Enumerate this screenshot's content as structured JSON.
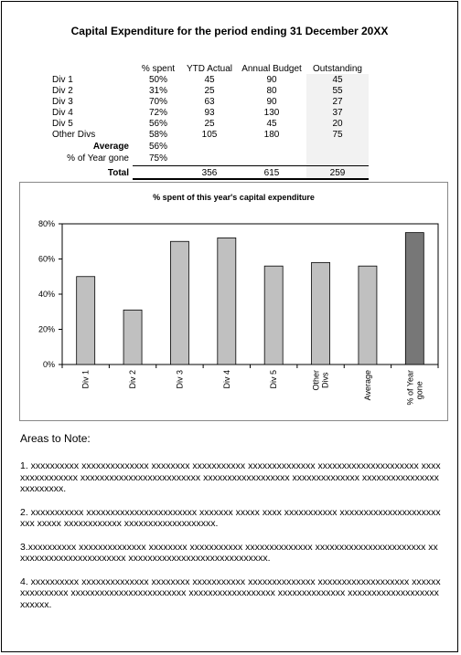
{
  "title": "Capital Expenditure for the period ending 31 December 20XX",
  "table": {
    "headers": {
      "spent": "% spent",
      "ytd": "YTD Actual",
      "budget": "Annual Budget",
      "outstanding": "Outstanding"
    },
    "rows": [
      {
        "label": "Div 1",
        "spent": "50%",
        "ytd": "45",
        "budget": "90",
        "outstanding": "45"
      },
      {
        "label": "Div 2",
        "spent": "31%",
        "ytd": "25",
        "budget": "80",
        "outstanding": "55"
      },
      {
        "label": "Div 3",
        "spent": "70%",
        "ytd": "63",
        "budget": "90",
        "outstanding": "27"
      },
      {
        "label": "Div 4",
        "spent": "72%",
        "ytd": "93",
        "budget": "130",
        "outstanding": "37"
      },
      {
        "label": "Div 5",
        "spent": "56%",
        "ytd": "25",
        "budget": "45",
        "outstanding": "20"
      },
      {
        "label": "Other Divs",
        "spent": "58%",
        "ytd": "105",
        "budget": "180",
        "outstanding": "75"
      }
    ],
    "average": {
      "label": "Average",
      "spent": "56%"
    },
    "year_gone": {
      "label": "% of Year gone",
      "spent": "75%"
    },
    "total": {
      "label": "Total",
      "ytd": "356",
      "budget": "615",
      "outstanding": "259"
    }
  },
  "chart_data": {
    "type": "bar",
    "title": "% spent of this year's capital expenditure",
    "categories": [
      "Div 1",
      "Div 2",
      "Div 3",
      "Div 4",
      "Div 5",
      "Other Divs",
      "Average",
      "% of Year gone"
    ],
    "values": [
      50,
      31,
      70,
      72,
      56,
      58,
      56,
      75
    ],
    "ylim": [
      0,
      80
    ],
    "yticks": [
      "0%",
      "20%",
      "40%",
      "60%",
      "80%"
    ],
    "ytick_values": [
      0,
      20,
      40,
      60,
      80
    ],
    "grid": false,
    "legend": "none",
    "bar_color": "#c0c0c0",
    "highlight_bar_color": "#777777"
  },
  "notes": {
    "heading": "Areas to Note:",
    "items": [
      "1.  xxxxxxxxxx xxxxxxxxxxxxxx xxxxxxxx xxxxxxxxxxx xxxxxxxxxxxxxx xxxxxxxxxxxxxxxxxxxxx xxxxxxxxxxxxxxxx xxxxxxxxxxxxxxxxxxxxxxxxx xxxxxxxxxxxxxxxxxx xxxxxxxxxxxxxx xxxxxxxxxxxxxxxxxxxxxxxxx.",
      "2. xxxxxxxxxxx xxxxxxxxxxxxxxxxxxxxxxx xxxxxxx xxxxx xxxx xxxxxxxxxxx xxxxxxxxxxxxxxxxxxxxxxxx xxxxx xxxxxxxxxxxx xxxxxxxxxxxxxxxxxxx.",
      "3.xxxxxxxxxx xxxxxxxxxxxxxx xxxxxxxx xxxxxxxxxxx xxxxxxxxxxxxxx xxxxxxxxxxxxxxxxxxxxxxx xxxxxxxxxxxxxxxxxxxxxxxx xxxxxxxxxxxxxxxxxxxxxxxxxxxxx.",
      "4.  xxxxxxxxxx xxxxxxxxxxxxxx xxxxxxxx xxxxxxxxxxx xxxxxxxxxxxxxx xxxxxxxxxxxxxxxxxxx xxxxxxxxxxxxxxxx xxxxxxxxxxxxxxxxxxxxxxxx xxxxxxxxxxxxxxxxxx xxxxxxxxxxxxxx xxxxxxxxxxxxxxxxxxxxxxxxx."
    ]
  }
}
